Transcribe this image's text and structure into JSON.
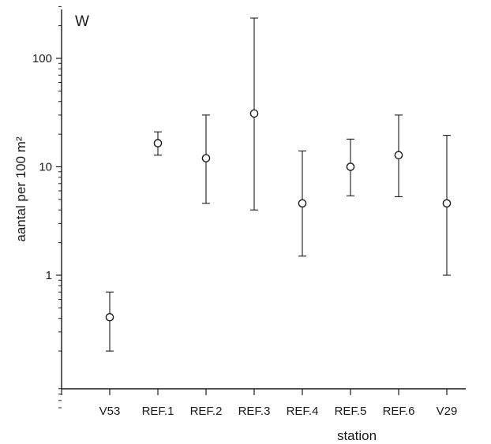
{
  "chart_data": {
    "type": "scatter",
    "panel_label": "W",
    "xlabel": "station",
    "ylabel": "aantal per 100 m²",
    "y_scale": "log",
    "ylim": [
      0.06,
      300
    ],
    "yticks": [
      {
        "value": 1,
        "label": "1"
      },
      {
        "value": 10,
        "label": "10"
      },
      {
        "value": 100,
        "label": "100"
      }
    ],
    "categories": [
      "V53",
      "REF.1",
      "REF.2",
      "REF.3",
      "REF.4",
      "REF.5",
      "REF.6",
      "V29"
    ],
    "points": [
      {
        "station": "V53",
        "y": 0.41,
        "lower": 0.2,
        "upper": 0.7
      },
      {
        "station": "REF.1",
        "y": 16.5,
        "lower": 12.8,
        "upper": 21.0
      },
      {
        "station": "REF.2",
        "y": 12.0,
        "lower": 4.6,
        "upper": 30.0
      },
      {
        "station": "REF.3",
        "y": 31.0,
        "lower": 4.0,
        "upper": 235.0
      },
      {
        "station": "REF.4",
        "y": 4.6,
        "lower": 1.5,
        "upper": 14.0
      },
      {
        "station": "REF.5",
        "y": 10.0,
        "lower": 5.4,
        "upper": 18.0
      },
      {
        "station": "REF.6",
        "y": 12.8,
        "lower": 5.3,
        "upper": 30.0
      },
      {
        "station": "V29",
        "y": 4.6,
        "lower": 1.0,
        "upper": 19.5
      }
    ],
    "grid": false,
    "legend": "none",
    "colors": {
      "ink": "#1a1a1a",
      "marker_fill": "#ffffff",
      "background": "#ffffff"
    }
  }
}
